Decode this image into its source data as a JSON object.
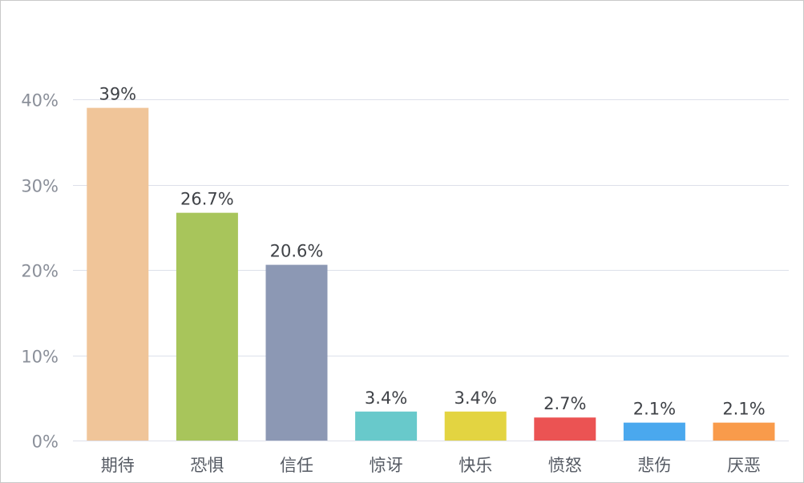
{
  "chart_data": {
    "type": "bar",
    "categories": [
      "期待",
      "恐惧",
      "信任",
      "惊讶",
      "快乐",
      "愤怒",
      "悲伤",
      "厌恶"
    ],
    "values": [
      39,
      26.7,
      20.6,
      3.4,
      3.4,
      2.7,
      2.1,
      2.1
    ],
    "data_labels": [
      "39%",
      "26.7%",
      "20.6%",
      "3.4%",
      "3.4%",
      "2.7%",
      "2.1%",
      "2.1%"
    ],
    "colors": [
      "#f0c599",
      "#a8c55b",
      "#8c98b4",
      "#68c9cb",
      "#e3d441",
      "#eb5353",
      "#4aa8ee",
      "#f99b4b"
    ],
    "y_ticks": [
      0,
      10,
      20,
      30,
      40
    ],
    "y_tick_labels": [
      "0%",
      "10%",
      "20%",
      "30%",
      "40%"
    ],
    "ylim": [
      0,
      40
    ],
    "grid": true,
    "legend": "none"
  }
}
